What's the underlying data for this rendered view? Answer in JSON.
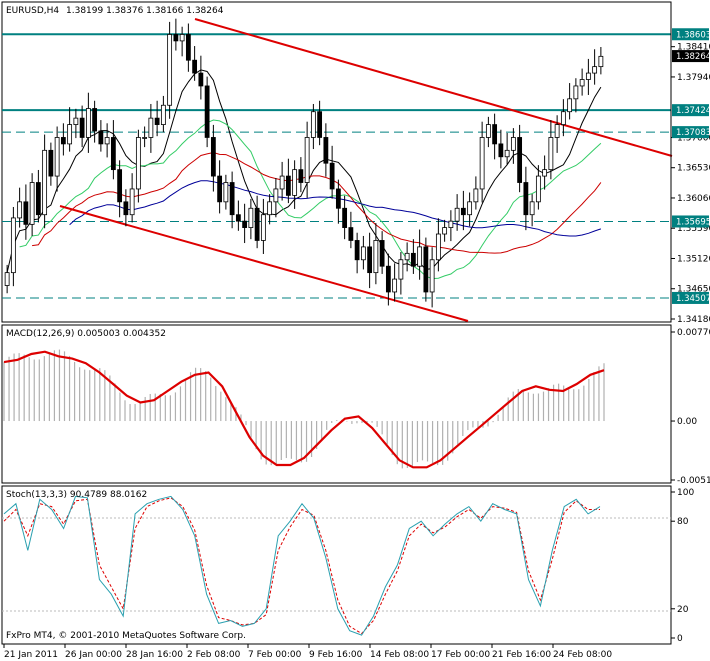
{
  "header": {
    "symbol": "EURUSD,H4",
    "ohlc": "1.38199 1.38376 1.38166 1.38264"
  },
  "macd_label": "MACD(12,26,9) 0.005003 0.004352",
  "stoch_label": "Stoch(13,3,3) 90.4789 88.0162",
  "copyright": "FxPro MT4, © 2001-2010 MetaQuotes Software Corp.",
  "chart_data": {
    "type": "candlestick",
    "price_axis": {
      "min": 1.3418,
      "max": 1.3884,
      "tick_labels": [
        "1.38410",
        "1.37940",
        "1.37000",
        "1.36530",
        "1.36060",
        "1.35590",
        "1.35120",
        "1.34650",
        "1.34180"
      ],
      "tag_labels": [
        "1.38603",
        "1.38264",
        "1.37424",
        "1.37083",
        "1.35695",
        "1.34507"
      ],
      "current_price": 1.38264
    },
    "horizontal_levels": [
      {
        "value": 1.38603,
        "style": "solid",
        "color": "#008080"
      },
      {
        "value": 1.37424,
        "style": "solid",
        "color": "#008080"
      },
      {
        "value": 1.37083,
        "style": "dashed",
        "color": "#008080"
      },
      {
        "value": 1.35695,
        "style": "dashed",
        "color": "#008080"
      },
      {
        "value": 1.34507,
        "style": "dashed",
        "color": "#008080"
      }
    ],
    "trendlines_color": "#dd0000",
    "ma_colors": {
      "black": "#000000",
      "green": "#33cc66",
      "red": "#cc0000",
      "blue": "#000099"
    },
    "time_labels": [
      "21 Jan 2011",
      "26 Jan 00:00",
      "28 Jan 16:00",
      "2 Feb 08:00",
      "7 Feb 00:00",
      "9 Feb 16:00",
      "14 Feb 08:00",
      "17 Feb 00:00",
      "21 Feb 16:00",
      "24 Feb 08:00"
    ],
    "closes": [
      1.349,
      1.3575,
      1.36,
      1.3565,
      1.363,
      1.358,
      1.368,
      1.364,
      1.37,
      1.369,
      1.372,
      1.373,
      1.37,
      1.3745,
      1.371,
      1.369,
      1.37,
      1.365,
      1.36,
      1.358,
      1.362,
      1.37,
      1.37,
      1.373,
      1.372,
      1.375,
      1.386,
      1.385,
      1.386,
      1.382,
      1.38,
      1.378,
      1.37,
      1.364,
      1.36,
      1.363,
      1.358,
      1.357,
      1.356,
      1.359,
      1.354,
      1.358,
      1.36,
      1.362,
      1.364,
      1.361,
      1.365,
      1.363,
      1.37,
      1.374,
      1.37,
      1.366,
      1.362,
      1.359,
      1.356,
      1.354,
      1.351,
      1.353,
      1.349,
      1.354,
      1.35,
      1.346,
      1.348,
      1.351,
      1.352,
      1.35,
      1.353,
      1.346,
      1.351,
      1.355,
      1.356,
      1.357,
      1.359,
      1.358,
      1.36,
      1.362,
      1.37,
      1.372,
      1.369,
      1.367,
      1.368,
      1.37,
      1.363,
      1.358,
      1.36,
      1.364,
      1.365,
      1.37,
      1.372,
      1.374,
      1.376,
      1.378,
      1.379,
      1.38,
      1.381,
      1.3826
    ],
    "macd_axis": {
      "min": -0.0051,
      "max": 0.0077,
      "tick_labels": [
        "0.00770",
        "0.00",
        "-0.00510"
      ]
    },
    "macd_signal": [
      0.0051,
      0.0053,
      0.0058,
      0.006,
      0.0056,
      0.0054,
      0.005,
      0.0042,
      0.0032,
      0.0022,
      0.0016,
      0.0018,
      0.0026,
      0.0034,
      0.004,
      0.0042,
      0.003,
      0.0008,
      -0.0014,
      -0.003,
      -0.0038,
      -0.0038,
      -0.0032,
      -0.002,
      -0.0008,
      0.0002,
      0.0004,
      -0.0006,
      -0.002,
      -0.0034,
      -0.004,
      -0.004,
      -0.0034,
      -0.0024,
      -0.0014,
      -0.0004,
      0.0006,
      0.0016,
      0.0026,
      0.003,
      0.0027,
      0.0026,
      0.0032,
      0.004,
      0.0044
    ],
    "stoch_axis": {
      "min": 0,
      "max": 100,
      "tick_labels": [
        "100",
        "80",
        "20",
        "0"
      ]
    },
    "stoch_main": [
      85,
      92,
      60,
      95,
      88,
      75,
      97,
      96,
      40,
      30,
      15,
      85,
      92,
      95,
      97,
      88,
      70,
      30,
      10,
      12,
      8,
      10,
      20,
      70,
      80,
      92,
      82,
      55,
      20,
      5,
      2,
      15,
      35,
      50,
      75,
      80,
      70,
      78,
      85,
      90,
      80,
      92,
      88,
      85,
      40,
      22,
      60,
      90,
      95,
      85,
      90
    ],
    "stoch_signal": [
      80,
      88,
      70,
      92,
      90,
      78,
      94,
      95,
      50,
      35,
      20,
      75,
      90,
      94,
      96,
      90,
      74,
      36,
      14,
      12,
      9,
      10,
      16,
      60,
      76,
      88,
      84,
      60,
      26,
      8,
      3,
      12,
      30,
      46,
      70,
      78,
      72,
      76,
      83,
      88,
      82,
      90,
      89,
      86,
      46,
      26,
      54,
      86,
      94,
      88,
      88
    ]
  }
}
